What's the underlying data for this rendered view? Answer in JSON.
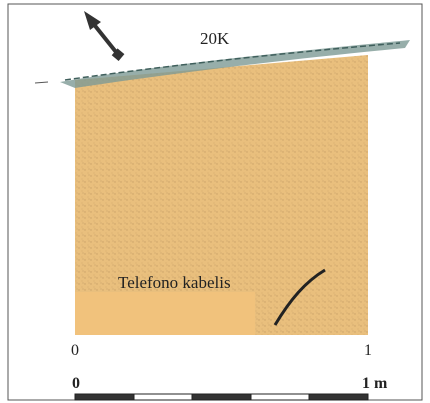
{
  "section": {
    "label": "20K",
    "cable_label": "Telefono kabelis",
    "axis_start": "0",
    "axis_end": "1"
  },
  "scale_bar": {
    "start": "0",
    "end": "1 m"
  }
}
